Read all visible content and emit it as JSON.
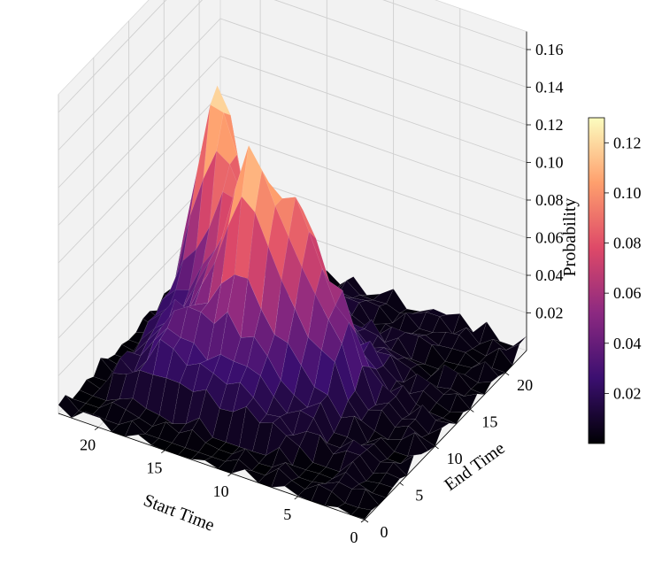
{
  "chart_data": {
    "type": "surface3d",
    "title": "",
    "xlabel": "Start Time",
    "ylabel": "End Time",
    "zlabel": "Probability",
    "x_ticks": [
      "0",
      "5",
      "10",
      "15",
      "20"
    ],
    "y_ticks": [
      "0",
      "5",
      "10",
      "15",
      "20"
    ],
    "z_ticks": [
      "0.02",
      "0.04",
      "0.06",
      "0.08",
      "0.10",
      "0.12",
      "0.14",
      "0.16"
    ],
    "colorbar_ticks": [
      "0.02",
      "0.04",
      "0.06",
      "0.08",
      "0.10",
      "0.12"
    ],
    "colormap": "magma",
    "colormap_stops": [
      "#000004",
      "#3b0f70",
      "#8c2981",
      "#de4968",
      "#fe9f6d",
      "#fcfdbf"
    ],
    "x_range": [
      0,
      23
    ],
    "y_range": [
      0,
      23
    ],
    "z_range": [
      0.0,
      0.16
    ],
    "color_range": [
      0.0,
      0.13
    ],
    "grid": true,
    "surface_peaks": [
      {
        "x": 19,
        "y": 15,
        "z": 0.145
      },
      {
        "x": 14,
        "y": 10,
        "z": 0.11
      },
      {
        "x": 11,
        "y": 11,
        "z": 0.09
      },
      {
        "x": 8,
        "y": 11,
        "z": 0.07
      },
      {
        "x": 18,
        "y": 6,
        "z": 0.06
      },
      {
        "x": 17,
        "y": 13,
        "z": 0.08
      }
    ]
  }
}
